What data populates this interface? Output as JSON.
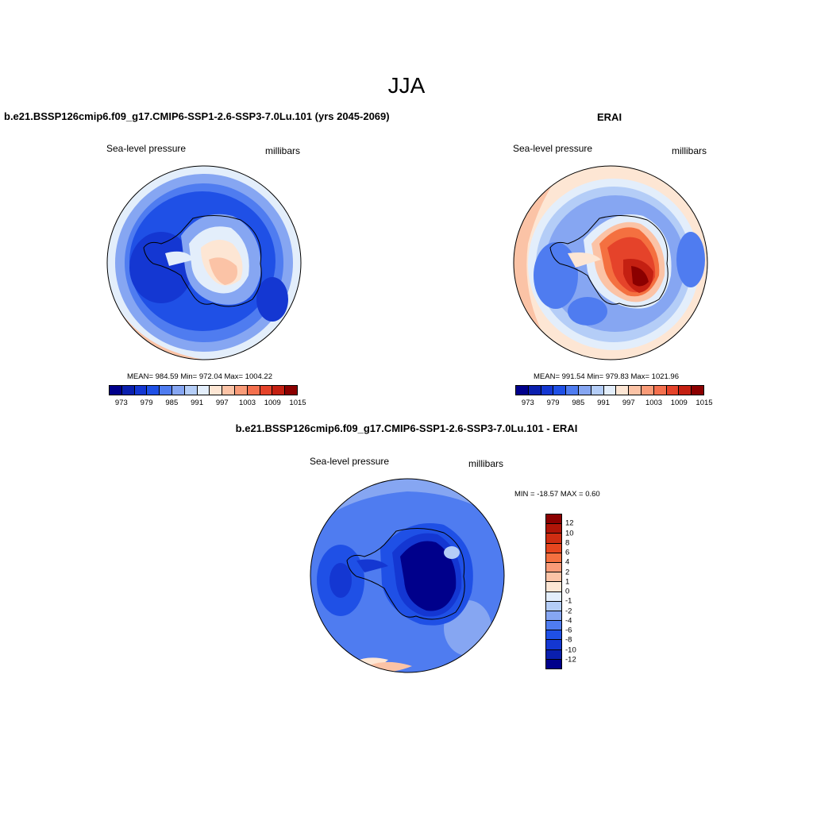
{
  "main_title": "JJA",
  "panels": [
    {
      "title": "b.e21.BSSP126cmip6.f09_g17.CMIP6-SSP1-2.6-SSP3-7.0Lu.101 (yrs 2045-2069)",
      "left_label": "Sea-level pressure",
      "right_label": "millibars",
      "stats": "MEAN= 984.59  Min= 972.04  Max= 1004.22"
    },
    {
      "title": "ERAI",
      "left_label": "Sea-level pressure",
      "right_label": "millibars",
      "stats": "MEAN= 991.54  Min= 979.83  Max= 1021.96"
    },
    {
      "title": "b.e21.BSSP126cmip6.f09_g17.CMIP6-SSP1-2.6-SSP3-7.0Lu.101 - ERAI",
      "left_label": "Sea-level pressure",
      "right_label": "millibars",
      "stats": "MIN = -18.57 MAX =   0.60"
    }
  ],
  "colorbar_abs": {
    "colors": [
      "#00008b",
      "#0a1fae",
      "#1437d2",
      "#1f50e6",
      "#4f7cf0",
      "#86a6f2",
      "#b4cdf7",
      "#e3eefb",
      "#fde6d4",
      "#fbc3a6",
      "#f99b78",
      "#f4704e",
      "#e5432a",
      "#c42012",
      "#8b0000"
    ],
    "tick_labels": [
      "973",
      "979",
      "985",
      "991",
      "997",
      "1003",
      "1009",
      "1015"
    ]
  },
  "colorbar_diff": {
    "colors": [
      "#8b0000",
      "#b01508",
      "#cf2d12",
      "#e6461f",
      "#f47040",
      "#f99b78",
      "#fbc3a6",
      "#fde6d4",
      "#e3eefb",
      "#b4cdf7",
      "#86a6f2",
      "#4f7cf0",
      "#1f50e6",
      "#1437d2",
      "#0a1fae",
      "#00008b"
    ],
    "tick_labels": [
      "12",
      "10",
      "8",
      "6",
      "4",
      "2",
      "1",
      "0",
      "-1",
      "-2",
      "-4",
      "-6",
      "-8",
      "-10",
      "-12"
    ]
  }
}
